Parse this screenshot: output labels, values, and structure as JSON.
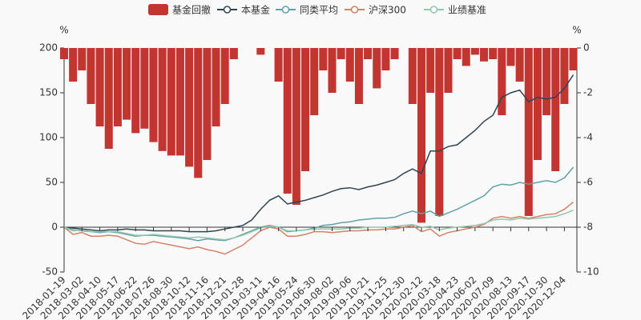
{
  "chart_data": {
    "type": "line",
    "y_label": "%",
    "y2_label": "%",
    "ylim": [
      -50,
      200
    ],
    "yticks": [
      -50,
      0,
      50,
      100,
      150,
      200
    ],
    "y2lim": [
      -10,
      0
    ],
    "y2ticks": [
      0,
      -2,
      -4,
      -6,
      -8,
      -10
    ],
    "categories": [
      "2018-01-19",
      null,
      "2018-03-02",
      null,
      "2018-04-10",
      null,
      "2018-05-17",
      null,
      "2018-06-22",
      null,
      "2018-07-26",
      null,
      "2018-08-30",
      null,
      "2018-10-12",
      null,
      "2018-11-16",
      null,
      "2018-12-21",
      null,
      "2019-01-28",
      null,
      "2019-03-11",
      null,
      "2019-04-16",
      null,
      "2019-05-24",
      null,
      "2019-06-30",
      null,
      "2019-08-02",
      null,
      "2019-09-06",
      null,
      "2019-10-21",
      null,
      "2019-11-25",
      null,
      "2019-12-30",
      null,
      "2020-02-12",
      null,
      "2020-03-18",
      null,
      "2020-04-23",
      null,
      "2020-06-02",
      null,
      "2020-07-09",
      null,
      "2020-08-13",
      null,
      "2020-09-17",
      null,
      "2020-10-30",
      null,
      "2020-12-04",
      null
    ],
    "series": [
      {
        "name": "基金回撤",
        "type": "bar",
        "axis": "y2",
        "color": "#c23531",
        "values": [
          -0.5,
          -1.5,
          -1.0,
          -2.5,
          -3.5,
          -4.5,
          -3.5,
          -3.2,
          -3.8,
          -3.6,
          -4.2,
          -4.6,
          -4.8,
          -4.8,
          -5.3,
          -5.8,
          -5.0,
          -3.5,
          -2.5,
          -0.5,
          0,
          0,
          -0.3,
          0,
          -1.5,
          -6.5,
          -7.0,
          -5.5,
          -3.0,
          -1.0,
          -2.0,
          -0.5,
          -1.5,
          -2.5,
          -0.5,
          -1.8,
          -1.0,
          -0.5,
          0,
          -2.5,
          -7.8,
          -2.0,
          -7.5,
          -2.0,
          -0.5,
          -0.8,
          -0.3,
          -0.6,
          -0.5,
          -3.0,
          -0.8,
          -1.5,
          -7.5,
          -5.0,
          -3.0,
          -5.5,
          -2.5,
          -1.0
        ]
      },
      {
        "name": "本基金",
        "type": "line",
        "color": "#2f4554",
        "values": [
          0,
          -1,
          -2,
          -3,
          -4,
          -3,
          -3,
          -2,
          -3,
          -3,
          -4,
          -4,
          -4,
          -4,
          -5,
          -5,
          -5,
          -4,
          -2,
          0,
          2,
          8,
          20,
          30,
          35,
          26,
          28,
          30,
          33,
          36,
          40,
          43,
          44,
          42,
          45,
          47,
          50,
          53,
          60,
          65,
          60,
          85,
          85,
          90,
          92,
          100,
          108,
          118,
          125,
          145,
          150,
          153,
          140,
          145,
          143,
          145,
          155,
          170
        ]
      },
      {
        "name": "同类平均",
        "type": "line",
        "color": "#61a0a8",
        "values": [
          0,
          -3,
          -4,
          -5,
          -6,
          -5,
          -6,
          -8,
          -10,
          -9,
          -9,
          -10,
          -11,
          -12,
          -13,
          -15,
          -13,
          -14,
          -15,
          -12,
          -8,
          -4,
          0,
          2,
          0,
          -5,
          -4,
          -3,
          -1,
          2,
          3,
          5,
          6,
          8,
          9,
          10,
          10,
          11,
          15,
          18,
          15,
          18,
          12,
          16,
          20,
          25,
          30,
          35,
          45,
          48,
          47,
          50,
          48,
          50,
          52,
          50,
          55,
          67
        ]
      },
      {
        "name": "沪深300",
        "type": "line",
        "color": "#d48265",
        "values": [
          0,
          -8,
          -6,
          -10,
          -10,
          -9,
          -10,
          -14,
          -18,
          -19,
          -16,
          -18,
          -20,
          -22,
          -24,
          -22,
          -25,
          -27,
          -30,
          -25,
          -20,
          -12,
          -4,
          0,
          -2,
          -10,
          -10,
          -8,
          -5,
          -5,
          -6,
          -5,
          -4,
          -4,
          -3,
          -3,
          -2,
          -2,
          0,
          2,
          -5,
          -2,
          -10,
          -6,
          -4,
          -2,
          0,
          3,
          10,
          12,
          10,
          12,
          10,
          12,
          14,
          15,
          20,
          28
        ]
      },
      {
        "name": "业绩基准",
        "type": "line",
        "color": "#91c7ae",
        "values": [
          0,
          -4,
          -3,
          -5,
          -5,
          -5,
          -5,
          -7,
          -9,
          -9,
          -8,
          -9,
          -10,
          -11,
          -12,
          -11,
          -12,
          -13,
          -14,
          -12,
          -9,
          -5,
          -1,
          1,
          0,
          -4,
          -4,
          -3,
          -2,
          -2,
          -2,
          -2,
          -1,
          -1,
          0,
          0,
          0,
          1,
          2,
          3,
          0,
          1,
          -3,
          -1,
          0,
          1,
          2,
          4,
          8,
          9,
          8,
          10,
          9,
          10,
          11,
          12,
          15,
          19
        ]
      }
    ]
  }
}
